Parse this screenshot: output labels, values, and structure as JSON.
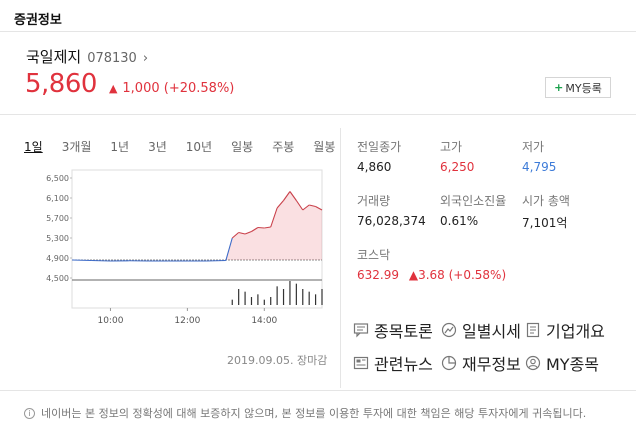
{
  "section_title": "증권정보",
  "stock": {
    "name": "국일제지",
    "code": "078130",
    "price": "5,860",
    "change": "1,000",
    "change_pct": "(+20.58%)",
    "my_button": "MY등록"
  },
  "tabs": [
    "1일",
    "3개월",
    "1년",
    "3년",
    "10년",
    "일봉",
    "주봉",
    "월봉"
  ],
  "active_tab": "1일",
  "chart_data": {
    "type": "line",
    "y_ticks": [
      "6,500",
      "6,100",
      "5,700",
      "5,300",
      "4,900",
      "4,500"
    ],
    "x_ticks": [
      "10:00",
      "12:00",
      "14:00"
    ],
    "ylim": [
      4500,
      6500
    ],
    "baseline": 4860,
    "x": [
      "09:00",
      "09:30",
      "10:00",
      "10:30",
      "11:00",
      "11:30",
      "12:00",
      "12:30",
      "13:00",
      "13:10",
      "13:20",
      "13:30",
      "13:40",
      "13:50",
      "14:00",
      "14:10",
      "14:20",
      "14:30",
      "14:40",
      "14:50",
      "15:00",
      "15:10",
      "15:20",
      "15:30"
    ],
    "values": [
      4860,
      4850,
      4840,
      4845,
      4840,
      4840,
      4840,
      4840,
      4850,
      5300,
      5410,
      5380,
      5430,
      5510,
      5500,
      5520,
      5900,
      6050,
      6230,
      6050,
      5860,
      5960,
      5930,
      5860
    ],
    "volume": [
      0,
      0,
      0,
      0,
      0,
      0,
      0,
      0,
      0,
      2,
      6,
      5,
      3,
      4,
      2,
      3,
      7,
      6,
      9,
      8,
      6,
      5,
      4,
      6
    ]
  },
  "date_line": "2019.09.05. 장마감",
  "stats": {
    "prev_close_label": "전일종가",
    "prev_close": "4,860",
    "high_label": "고가",
    "high": "6,250",
    "low_label": "저가",
    "low": "4,795",
    "volume_label": "거래량",
    "volume": "76,028,374",
    "foreign_label": "외국인소진율",
    "foreign": "0.61%",
    "mktcap_label": "시가 총액",
    "mktcap": "7,101억",
    "index_label": "코스닥",
    "index_value": "632.99",
    "index_change": "3.68 (+0.58%)"
  },
  "links": {
    "forum": "종목토론",
    "daily": "일별시세",
    "company": "기업개요",
    "news": "관련뉴스",
    "finance": "재무정보",
    "my": "MY종목"
  },
  "disclaimer": "네이버는 본 정보의 정확성에 대해 보증하지 않으며, 본 정보를 이용한 투자에 대한 책임은 해당 투자자에게 귀속됩니다.",
  "colors": {
    "up": "#e0323d",
    "down": "#3d7bd8",
    "plus": "#1aa14b"
  }
}
